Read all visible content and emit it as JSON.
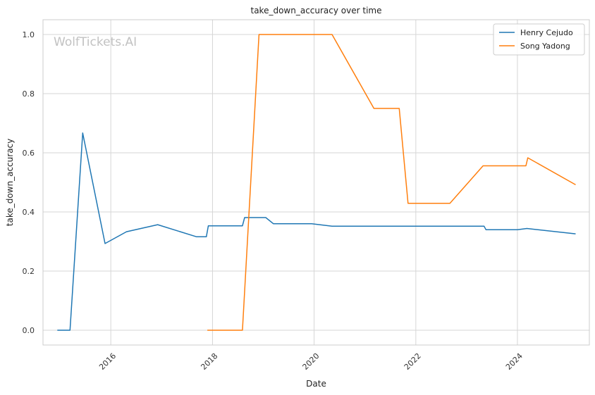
{
  "chart_data": {
    "type": "line",
    "title": "take_down_accuracy over time",
    "xlabel": "Date",
    "ylabel": "take_down_accuracy",
    "watermark": "WolfTickets.AI",
    "xlim": [
      "2014-09-01",
      "2025-06-01"
    ],
    "ylim": [
      -0.05,
      1.05
    ],
    "x_ticks": [
      "2016",
      "2018",
      "2020",
      "2022",
      "2024"
    ],
    "y_ticks": [
      0.0,
      0.2,
      0.4,
      0.6,
      0.8,
      1.0
    ],
    "y_tick_labels": [
      "0.0",
      "0.2",
      "0.4",
      "0.6",
      "0.8",
      "1.0"
    ],
    "grid": true,
    "legend_position": "top-right",
    "series": [
      {
        "name": "Henry Cejudo",
        "color": "#1f77b4",
        "points": [
          [
            "2014-12-13",
            0.0
          ],
          [
            "2015-03-14",
            0.0
          ],
          [
            "2015-06-13",
            0.667
          ],
          [
            "2015-11-21",
            0.293
          ],
          [
            "2016-04-23",
            0.333
          ],
          [
            "2016-12-03",
            0.357
          ],
          [
            "2017-09-09",
            0.316
          ],
          [
            "2017-11-18",
            0.316
          ],
          [
            "2017-12-02",
            0.353
          ],
          [
            "2018-08-04",
            0.353
          ],
          [
            "2018-08-20",
            0.381
          ],
          [
            "2019-01-19",
            0.381
          ],
          [
            "2019-03-15",
            0.36
          ],
          [
            "2019-12-14",
            0.36
          ],
          [
            "2020-05-09",
            0.352
          ],
          [
            "2023-05-06",
            0.352
          ],
          [
            "2023-05-20",
            0.34
          ],
          [
            "2024-01-01",
            0.34
          ],
          [
            "2024-03-09",
            0.344
          ],
          [
            "2025-02-22",
            0.326
          ]
        ]
      },
      {
        "name": "Song Yadong",
        "color": "#ff7f0e",
        "points": [
          [
            "2017-11-25",
            0.0
          ],
          [
            "2018-08-04",
            0.0
          ],
          [
            "2018-12-01",
            1.0
          ],
          [
            "2020-05-09",
            1.0
          ],
          [
            "2021-03-06",
            0.75
          ],
          [
            "2021-09-04",
            0.75
          ],
          [
            "2021-11-06",
            0.429
          ],
          [
            "2022-09-03",
            0.429
          ],
          [
            "2023-04-29",
            0.556
          ],
          [
            "2024-03-02",
            0.556
          ],
          [
            "2024-03-16",
            0.583
          ],
          [
            "2025-02-22",
            0.492
          ]
        ]
      }
    ]
  }
}
